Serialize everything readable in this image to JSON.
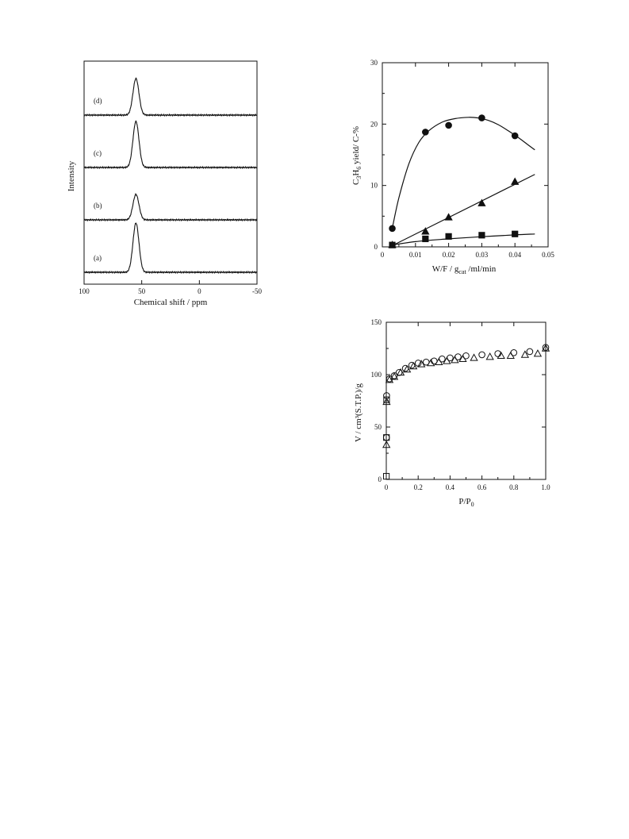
{
  "chart_data": [
    {
      "type": "line",
      "xlabel": "Chemical shift / ppm",
      "ylabel": "Intensity",
      "xlim": [
        100,
        -50
      ],
      "x_ticks": [
        "100",
        "50",
        "0",
        "-50"
      ],
      "series": [
        {
          "name": "(a)",
          "peak_ppm": 55,
          "peak_relative_height": 1.0
        },
        {
          "name": "(b)",
          "peak_ppm": 55,
          "peak_relative_height": 0.55
        },
        {
          "name": "(c)",
          "peak_ppm": 55,
          "peak_relative_height": 0.95
        },
        {
          "name": "(d)",
          "peak_ppm": 55,
          "peak_relative_height": 0.75
        }
      ],
      "legend": "none",
      "grid": false
    },
    {
      "type": "scatter",
      "xlabel": "W/F / g",
      "xlabel_sub": "cat",
      "xlabel_tail": " /ml/min",
      "ylabel_parts": {
        "a": "C",
        "s1": "3",
        "b": "H",
        "s2": "6",
        "c": " yield/ C-%"
      },
      "xlim": [
        0,
        0.05
      ],
      "ylim": [
        0,
        30
      ],
      "x_ticks": [
        "0",
        "0.01",
        "0.02",
        "0.03",
        "0.04",
        "0.05"
      ],
      "y_ticks": [
        "0",
        "10",
        "20",
        "30"
      ],
      "series": [
        {
          "marker": "circle-filled",
          "x": [
            0.003,
            0.013,
            0.02,
            0.03,
            0.04
          ],
          "y": [
            3.0,
            18.7,
            19.8,
            21.0,
            18.1
          ],
          "fit": {
            "x": [
              0.003,
              0.005,
              0.008,
              0.011,
              0.014,
              0.018,
              0.022,
              0.026,
              0.029,
              0.032,
              0.035,
              0.038,
              0.041,
              0.044,
              0.046
            ],
            "y": [
              3.0,
              8.0,
              13.5,
              17.0,
              18.9,
              20.3,
              20.9,
              21.1,
              21.0,
              20.6,
              19.9,
              18.9,
              17.8,
              16.6,
              15.8
            ]
          }
        },
        {
          "marker": "triangle-filled",
          "x": [
            0.003,
            0.013,
            0.02,
            0.03,
            0.04
          ],
          "y": [
            0.3,
            2.5,
            4.8,
            7.1,
            10.6
          ],
          "fit": {
            "x": [
              0.003,
              0.046
            ],
            "y": [
              0.2,
              11.8
            ]
          }
        },
        {
          "marker": "square-filled",
          "x": [
            0.003,
            0.013,
            0.02,
            0.03,
            0.04
          ],
          "y": [
            0.3,
            1.3,
            1.7,
            1.9,
            2.1
          ],
          "fit": {
            "x": [
              0.003,
              0.01,
              0.02,
              0.03,
              0.04,
              0.046
            ],
            "y": [
              0.3,
              0.85,
              1.3,
              1.65,
              1.95,
              2.1
            ]
          }
        }
      ],
      "legend": "none",
      "grid": false
    },
    {
      "type": "scatter",
      "xlabel_parts": {
        "a": "P/P",
        "s": "0"
      },
      "ylabel": "V / cm³(S.T.P.)/g",
      "xlim": [
        0,
        1.0
      ],
      "ylim": [
        0,
        150
      ],
      "x_ticks": [
        "0",
        "0.2",
        "0.4",
        "0.6",
        "0.8",
        "1.0"
      ],
      "y_ticks": [
        "0",
        "50",
        "100",
        "150"
      ],
      "series": [
        {
          "marker": "circle-open",
          "x": [
            0.001,
            0.002,
            0.02,
            0.05,
            0.08,
            0.12,
            0.16,
            0.2,
            0.25,
            0.3,
            0.35,
            0.4,
            0.45,
            0.5,
            0.6,
            0.7,
            0.8,
            0.9,
            1.0
          ],
          "y": [
            40,
            80,
            96,
            99,
            102,
            106,
            109,
            111,
            112,
            113,
            115,
            116,
            117,
            118,
            119,
            120,
            121,
            122,
            126
          ]
        },
        {
          "marker": "triangle-open",
          "x": [
            0.001,
            0.002,
            0.02,
            0.05,
            0.09,
            0.13,
            0.17,
            0.22,
            0.28,
            0.33,
            0.38,
            0.43,
            0.48,
            0.55,
            0.65,
            0.72,
            0.78,
            0.87,
            0.95,
            1.0
          ],
          "y": [
            33,
            74,
            95,
            98,
            102,
            105,
            108,
            110,
            111,
            112,
            113,
            114,
            115,
            116,
            117,
            118,
            118,
            119,
            120,
            125
          ]
        },
        {
          "marker": "square-open",
          "x": [
            0.0005,
            0.001,
            0.002
          ],
          "y": [
            3,
            40,
            76
          ]
        }
      ],
      "legend": "none",
      "grid": false
    }
  ]
}
